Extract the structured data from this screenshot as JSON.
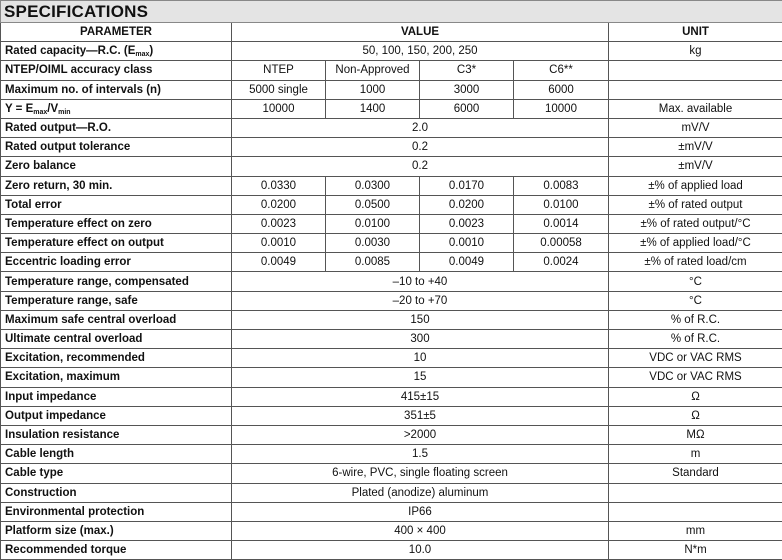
{
  "title": "SPECIFICATIONS",
  "headers": {
    "parameter": "PARAMETER",
    "value": "VALUE",
    "unit": "UNIT"
  },
  "rows": [
    {
      "param": [
        [
          "Rated capacity—R.C. (E",
          ""
        ],
        [
          "max",
          "sub"
        ],
        [
          ")",
          ""
        ]
      ],
      "values": "50, 100, 150, 200, 250",
      "unit": "kg"
    },
    {
      "param": [
        [
          "NTEP/OIML accuracy class",
          ""
        ]
      ],
      "values": [
        "NTEP",
        "Non-Approved",
        "C3*",
        "C6**"
      ],
      "unit": ""
    },
    {
      "param": [
        [
          "Maximum no. of intervals (n)",
          ""
        ]
      ],
      "values": [
        "5000 single",
        "1000",
        "3000",
        "6000"
      ],
      "unit": ""
    },
    {
      "param": [
        [
          "Y = E",
          ""
        ],
        [
          "max",
          "sub"
        ],
        [
          "/V",
          ""
        ],
        [
          "min",
          "sub"
        ]
      ],
      "values": [
        "10000",
        "1400",
        "6000",
        "10000"
      ],
      "unit": "Max. available"
    },
    {
      "param": [
        [
          "Rated output—R.O.",
          ""
        ]
      ],
      "values": "2.0",
      "unit": "mV/V"
    },
    {
      "param": [
        [
          "Rated output tolerance",
          ""
        ]
      ],
      "values": "0.2",
      "unit": "±mV/V"
    },
    {
      "param": [
        [
          "Zero balance",
          ""
        ]
      ],
      "values": "0.2",
      "unit": "±mV/V"
    },
    {
      "param": [
        [
          "Zero return, 30 min.",
          ""
        ]
      ],
      "values": [
        "0.0330",
        "0.0300",
        "0.0170",
        "0.0083"
      ],
      "unit": "±% of applied load"
    },
    {
      "param": [
        [
          "Total error",
          ""
        ]
      ],
      "values": [
        "0.0200",
        "0.0500",
        "0.0200",
        "0.0100"
      ],
      "unit": "±% of rated output"
    },
    {
      "param": [
        [
          "Temperature effect on zero",
          ""
        ]
      ],
      "values": [
        "0.0023",
        "0.0100",
        "0.0023",
        "0.0014"
      ],
      "unit": "±% of rated output/°C"
    },
    {
      "param": [
        [
          "Temperature effect on output",
          ""
        ]
      ],
      "values": [
        "0.0010",
        "0.0030",
        "0.0010",
        "0.00058"
      ],
      "unit": "±% of applied load/°C"
    },
    {
      "param": [
        [
          "Eccentric loading error",
          ""
        ]
      ],
      "values": [
        "0.0049",
        "0.0085",
        "0.0049",
        "0.0024"
      ],
      "unit": "±% of rated load/cm"
    },
    {
      "param": [
        [
          "Temperature range, compensated",
          ""
        ]
      ],
      "values": "–10 to +40",
      "unit": "°C"
    },
    {
      "param": [
        [
          "Temperature range, safe",
          ""
        ]
      ],
      "values": "–20 to +70",
      "unit": "°C"
    },
    {
      "param": [
        [
          "Maximum safe central overload",
          ""
        ]
      ],
      "values": "150",
      "unit": "% of R.C."
    },
    {
      "param": [
        [
          "Ultimate central overload",
          ""
        ]
      ],
      "values": "300",
      "unit": "% of R.C."
    },
    {
      "param": [
        [
          "Excitation, recommended",
          ""
        ]
      ],
      "values": "10",
      "unit": "VDC or VAC RMS"
    },
    {
      "param": [
        [
          "Excitation, maximum",
          ""
        ]
      ],
      "values": "15",
      "unit": "VDC or VAC RMS"
    },
    {
      "param": [
        [
          "Input impedance",
          ""
        ]
      ],
      "values": "415±15",
      "unit": "Ω"
    },
    {
      "param": [
        [
          "Output impedance",
          ""
        ]
      ],
      "values": "351±5",
      "unit": "Ω"
    },
    {
      "param": [
        [
          "Insulation resistance",
          ""
        ]
      ],
      "values": ">2000",
      "unit": "MΩ"
    },
    {
      "param": [
        [
          "Cable length",
          ""
        ]
      ],
      "values": "1.5",
      "unit": "m"
    },
    {
      "param": [
        [
          "Cable type",
          ""
        ]
      ],
      "values": "6-wire, PVC, single floating screen",
      "unit": "Standard"
    },
    {
      "param": [
        [
          "Construction",
          ""
        ]
      ],
      "values": "Plated (anodize) aluminum",
      "unit": ""
    },
    {
      "param": [
        [
          "Environmental protection",
          ""
        ]
      ],
      "values": "IP66",
      "unit": ""
    },
    {
      "param": [
        [
          "Platform size (max.)",
          ""
        ]
      ],
      "values": "400 × 400",
      "unit": "mm"
    },
    {
      "param": [
        [
          "Recommended torque",
          ""
        ]
      ],
      "values": "10.0",
      "unit": "N*m"
    }
  ]
}
